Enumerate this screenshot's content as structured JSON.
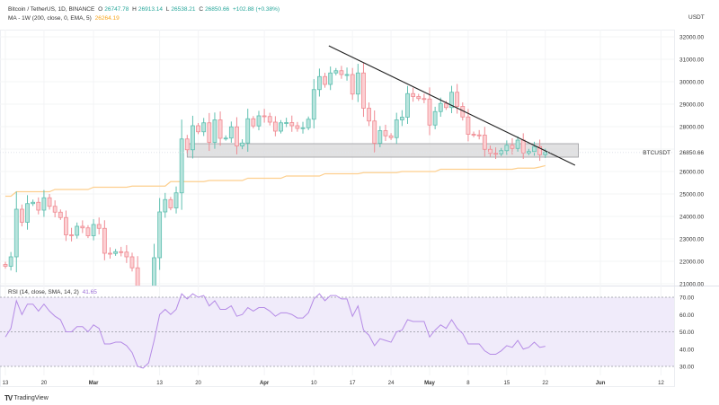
{
  "header": {
    "symbol": "Bitcoin / TetherUS, 1D, BINANCE",
    "o_label": "O",
    "o": "26747.78",
    "h_label": "H",
    "h": "26913.14",
    "l_label": "L",
    "l": "26538.21",
    "c_label": "C",
    "c": "26850.66",
    "change": "+102.88 (+0.38%)",
    "ma_label": "MA - 1W (200, close, 0, EMA, 5)",
    "ma_value": "26264.19",
    "rsi_label": "RSI (14, close, SMA, 14, 2)",
    "rsi_value": "41.65"
  },
  "footer": {
    "brand": "TradingView"
  },
  "colors": {
    "up": "#5fbfb0",
    "up_fill": "#b8e4dd",
    "down": "#ef8a92",
    "down_fill": "#fcd0d3",
    "ma": "#fdcf8e",
    "rsi": "#b58be6",
    "rsi_band": "#f0ebfa",
    "zone": "#d9d9db"
  },
  "chart_data": [
    {
      "type": "candlestick",
      "title": "Bitcoin / TetherUS, 1D, BINANCE",
      "currency_label": "USDT",
      "start_date": "Feb 13",
      "first_open": 21860,
      "closes": [
        21780,
        22200,
        24320,
        23740,
        24570,
        24630,
        24280,
        24830,
        24450,
        24190,
        23950,
        23180,
        23160,
        23560,
        23490,
        23140,
        23640,
        23470,
        22360,
        22350,
        22430,
        22410,
        22200,
        21710,
        20360,
        20190,
        20630,
        22160,
        24200,
        24750,
        24380,
        25050,
        27450,
        26970,
        28040,
        27770,
        28170,
        27300,
        28300,
        27480,
        27490,
        27990,
        27140,
        27270,
        28350,
        28030,
        28480,
        28450,
        28200,
        27800,
        28170,
        28180,
        28040,
        27920,
        27950,
        28330,
        29650,
        30230,
        29880,
        30390,
        30490,
        30320,
        30320,
        29450,
        30390,
        28820,
        28250,
        27260,
        27820,
        27590,
        27510,
        28300,
        28420,
        29470,
        29340,
        29250,
        29230,
        28070,
        28670,
        29030,
        28850,
        29530,
        28900,
        28430,
        27660,
        27630,
        27620,
        26990,
        26810,
        26790,
        26930,
        27170,
        27030,
        27400,
        26830,
        26890,
        27110,
        26750,
        26850.66
      ],
      "ma_weekly": [
        24900,
        24900,
        25100,
        25100,
        25100,
        25100,
        25100,
        25100,
        25100,
        25200,
        25200,
        25200,
        25200,
        25200,
        25200,
        25200,
        25300,
        25300,
        25300,
        25300,
        25300,
        25300,
        25300,
        25350,
        25350,
        25350,
        25350,
        25350,
        25350,
        25350,
        25550,
        25550,
        25550,
        25550,
        25550,
        25550,
        25550,
        25600,
        25600,
        25600,
        25600,
        25600,
        25600,
        25600,
        25700,
        25700,
        25700,
        25700,
        25700,
        25700,
        25700,
        25800,
        25800,
        25800,
        25800,
        25800,
        25800,
        25800,
        25900,
        25900,
        25900,
        25900,
        25900,
        25900,
        25900,
        25950,
        25950,
        25950,
        25950,
        25950,
        25950,
        25950,
        26000,
        26000,
        26000,
        26000,
        26000,
        26000,
        26000,
        26100,
        26100,
        26100,
        26100,
        26100,
        26100,
        26100,
        26100,
        26100,
        26100,
        26100,
        26100,
        26100,
        26100,
        26150,
        26150,
        26150,
        26150,
        26200,
        26264.19
      ],
      "y_ticks": [
        "32000.00",
        "31000.00",
        "30000.00",
        "29000.00",
        "28000.00",
        "26000.00",
        "25000.00",
        "24000.00",
        "23000.00",
        "22000.00",
        "21000.00"
      ],
      "ylim": [
        20900,
        32300
      ],
      "last_price_label": "BTCUSDT",
      "last_price": "26850.66",
      "zone": {
        "from_day": 33,
        "to_day": 104,
        "price_top": 27240,
        "price_bottom": 26640
      },
      "trendline": {
        "from_day": 58.7,
        "from_price": 31600,
        "to_day": 103.4,
        "to_price": 26280
      }
    },
    {
      "type": "line",
      "title": "RSI (14, close, SMA, 14, 2)",
      "values": [
        47,
        52,
        68,
        60,
        66,
        66,
        62,
        66,
        62,
        59,
        57,
        50,
        50,
        53,
        53,
        50,
        54,
        52,
        43,
        43,
        44,
        44,
        42,
        38,
        30,
        29,
        32,
        45,
        60,
        63,
        60,
        63,
        72,
        69,
        72,
        70,
        71,
        65,
        68,
        63,
        63,
        65,
        59,
        60,
        64,
        62,
        64,
        64,
        62,
        59,
        61,
        61,
        60,
        58,
        58,
        61,
        69,
        72,
        68,
        71,
        71,
        69,
        69,
        59,
        65,
        51,
        48,
        42,
        46,
        45,
        44,
        50,
        51,
        57,
        56,
        56,
        56,
        47,
        51,
        54,
        52,
        57,
        52,
        49,
        43,
        43,
        43,
        39,
        37,
        37,
        39,
        42,
        41,
        45,
        40,
        41,
        44,
        41,
        41.65
      ],
      "band": [
        30,
        70
      ],
      "mid": 50,
      "y_ticks": [
        "70.00",
        "60.00",
        "50.00",
        "40.00",
        "30.00"
      ]
    }
  ],
  "x_axis": [
    {
      "label": "13",
      "day": 0
    },
    {
      "label": "20",
      "day": 7
    },
    {
      "label": "Mar",
      "day": 16
    },
    {
      "label": "13",
      "day": 28
    },
    {
      "label": "20",
      "day": 35
    },
    {
      "label": "Apr",
      "day": 47
    },
    {
      "label": "10",
      "day": 56
    },
    {
      "label": "17",
      "day": 63
    },
    {
      "label": "24",
      "day": 70
    },
    {
      "label": "May",
      "day": 77
    },
    {
      "label": "8",
      "day": 84
    },
    {
      "label": "15",
      "day": 91
    },
    {
      "label": "22",
      "day": 98
    },
    {
      "label": "Jun",
      "day": 108
    },
    {
      "label": "12",
      "day": 119
    }
  ]
}
